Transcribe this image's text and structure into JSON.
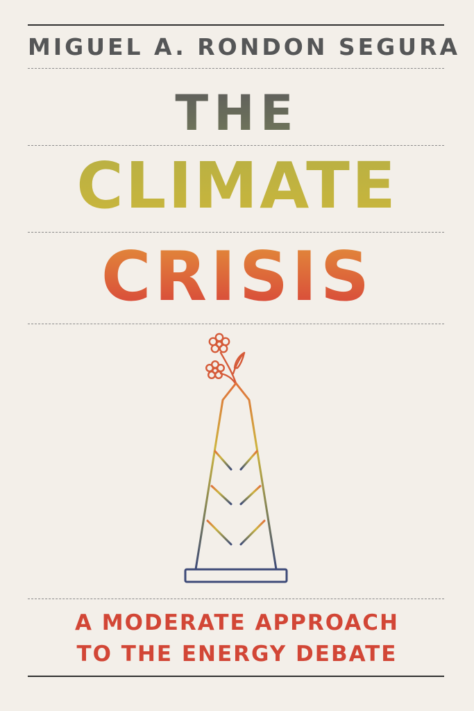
{
  "cover": {
    "author": "MIGUEL A. RONDON SEGURA",
    "title_line_1": "THE",
    "title_line_2": "CLIMATE",
    "title_line_3": "CRISIS",
    "subtitle_line_1": "A MODERATE APPROACH",
    "subtitle_line_2": "TO THE ENERGY DEBATE",
    "illustration": "oil-derrick-with-flowers-icon",
    "colors": {
      "background": "#f3efe9",
      "author": "#555657",
      "title_the": "#64675b",
      "title_climate": "#c2b43f",
      "title_crisis": "#dd5f3a",
      "subtitle": "#d24636",
      "rules": "#2f2f2f"
    }
  }
}
